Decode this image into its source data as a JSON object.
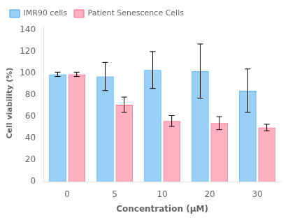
{
  "chart_data": {
    "type": "bar",
    "xlabel": "Concentration (μM)",
    "ylabel": "Cell viability (%)",
    "categories": [
      "0",
      "5",
      "10",
      "20",
      "30"
    ],
    "series": [
      {
        "name": "IMR90 cells",
        "values": [
          99,
          97,
          103,
          102,
          84
        ],
        "errors": [
          2,
          13,
          17,
          25,
          20
        ]
      },
      {
        "name": "Patient Senescence Cells",
        "values": [
          99,
          71,
          56,
          54,
          50
        ],
        "errors": [
          2,
          7,
          5,
          6,
          3
        ]
      }
    ],
    "ylim": [
      0,
      145
    ],
    "yticks": [
      0,
      20,
      40,
      60,
      80,
      100,
      120,
      140
    ],
    "grid": false,
    "legend": "upper left"
  }
}
